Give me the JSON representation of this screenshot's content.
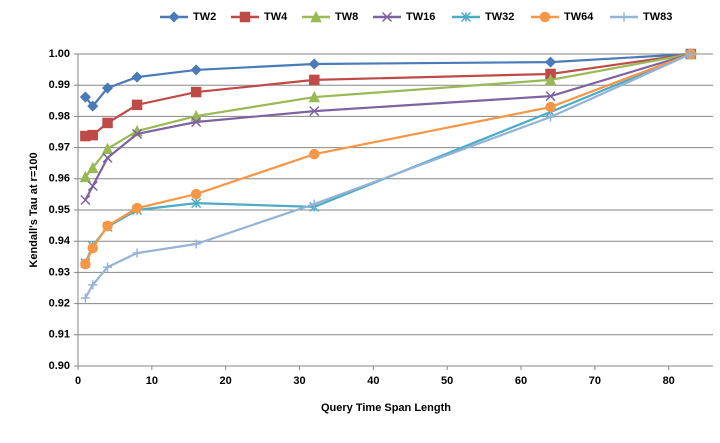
{
  "chart_data": {
    "type": "line",
    "x_label": "Query Time Span Length",
    "y_label": "Kendall's Tau at r=100",
    "xlim": [
      0,
      86
    ],
    "xticks": [
      0,
      10,
      20,
      30,
      40,
      50,
      60,
      70,
      80
    ],
    "ylim": [
      0.9,
      1.0
    ],
    "yticks": [
      {
        "value": 0.9,
        "label": "0.90"
      },
      0.91,
      0.92,
      0.93,
      0.94,
      0.95,
      0.96,
      0.97,
      0.98,
      0.99,
      {
        "value": 1.0,
        "label": "1.00"
      }
    ],
    "grid": true,
    "legend": "top",
    "x": [
      1,
      2,
      4,
      8,
      16,
      32,
      64,
      83
    ],
    "series": [
      {
        "name": "TW2",
        "color": "#4a7ab8",
        "marker": "diamond",
        "values": [
          0.9862,
          0.9833,
          0.9891,
          0.9926,
          0.9949,
          0.9968,
          0.9974,
          1.0
        ]
      },
      {
        "name": "TW4",
        "color": "#be4b48",
        "marker": "square",
        "values": [
          0.9737,
          0.974,
          0.9779,
          0.9837,
          0.9878,
          0.9917,
          0.9936,
          1.0
        ]
      },
      {
        "name": "TW8",
        "color": "#98b954",
        "marker": "triangle",
        "values": [
          0.9606,
          0.9635,
          0.9696,
          0.9753,
          0.9801,
          0.9862,
          0.9917,
          1.0
        ]
      },
      {
        "name": "TW16",
        "color": "#7e62a1",
        "marker": "x",
        "values": [
          0.9532,
          0.9577,
          0.9667,
          0.9744,
          0.9782,
          0.9817,
          0.9865,
          1.0
        ]
      },
      {
        "name": "TW32",
        "color": "#4bacc6",
        "marker": "star",
        "values": [
          0.933,
          0.9385,
          0.9446,
          0.95,
          0.9522,
          0.951,
          0.9814,
          1.0
        ]
      },
      {
        "name": "TW64",
        "color": "#f79646",
        "marker": "circle",
        "values": [
          0.9327,
          0.9378,
          0.9449,
          0.9506,
          0.9551,
          0.9679,
          0.983,
          1.0
        ]
      },
      {
        "name": "TW83",
        "color": "#95b3d7",
        "marker": "plus",
        "values": [
          0.9218,
          0.926,
          0.9317,
          0.9362,
          0.9391,
          0.9519,
          0.9798,
          1.0
        ]
      }
    ]
  }
}
